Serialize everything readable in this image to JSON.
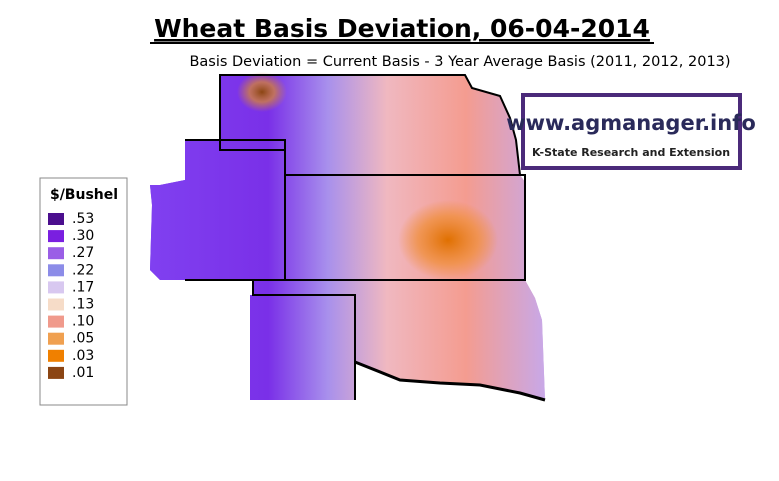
{
  "header": {
    "title": "Wheat Basis Deviation, 06-04-2014",
    "subtitle": "Basis Deviation = Current Basis - 3 Year Average Basis (2011, 2012, 2013)"
  },
  "legend": {
    "title": "$/Bushel",
    "items": [
      {
        "label": ".53",
        "color": "#4b0e8e"
      },
      {
        "label": ".30",
        "color": "#7a1fe0"
      },
      {
        "label": ".27",
        "color": "#9a5ee6"
      },
      {
        "label": ".22",
        "color": "#8c8ce8"
      },
      {
        "label": ".17",
        "color": "#d8c8f0"
      },
      {
        "label": ".13",
        "color": "#f6dcc8"
      },
      {
        "label": ".10",
        "color": "#f09a8c"
      },
      {
        "label": ".05",
        "color": "#f0a050"
      },
      {
        "label": ".03",
        "color": "#f08000"
      },
      {
        "label": ".01",
        "color": "#8b4513"
      }
    ]
  },
  "logo": {
    "url": "www.agmanager.info",
    "org": "K-State Research and Extension"
  }
}
